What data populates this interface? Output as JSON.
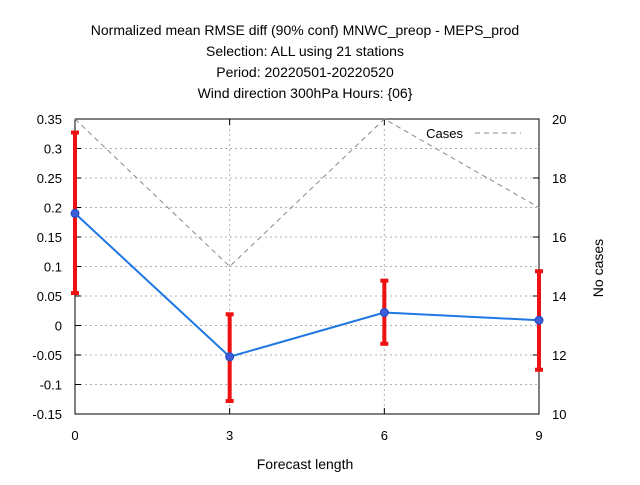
{
  "chart_data": {
    "type": "line",
    "title_lines": [
      "Normalized mean RMSE diff (90% conf) MNWC_preop - MEPS_prod",
      "Selection: ALL using    21 stations",
      "Period: 20220501-20220520",
      "Wind direction 300hPa   Hours: {06}"
    ],
    "xlabel": "Forecast length",
    "ylabel": "",
    "y2label": "No cases",
    "x": [
      0,
      3,
      6,
      9
    ],
    "xlim": [
      0,
      9
    ],
    "ylim": [
      -0.15,
      0.35
    ],
    "y2lim": [
      10,
      20
    ],
    "x_ticks": [
      "0",
      "3",
      "6",
      "9"
    ],
    "y_ticks": [
      "-0.15",
      "-0.1",
      "-0.05",
      "0",
      "0.05",
      "0.1",
      "0.15",
      "0.2",
      "0.25",
      "0.3",
      "0.35"
    ],
    "y2_ticks": [
      "10",
      "12",
      "14",
      "16",
      "18",
      "20"
    ],
    "grid": true,
    "legend_position": "top-right",
    "series": [
      {
        "values": [
          0.19,
          -0.053,
          0.022,
          0.009
        ],
        "error_low": [
          0.055,
          -0.128,
          -0.031,
          -0.075
        ],
        "error_high": [
          0.327,
          0.019,
          0.076,
          0.092
        ],
        "color": "#1f77e4",
        "error_color": "#ee1111",
        "axis": "left"
      },
      {
        "name": "Cases",
        "values": [
          20,
          15,
          20,
          17
        ],
        "color": "#888888",
        "style": "dashed",
        "axis": "right"
      }
    ]
  }
}
